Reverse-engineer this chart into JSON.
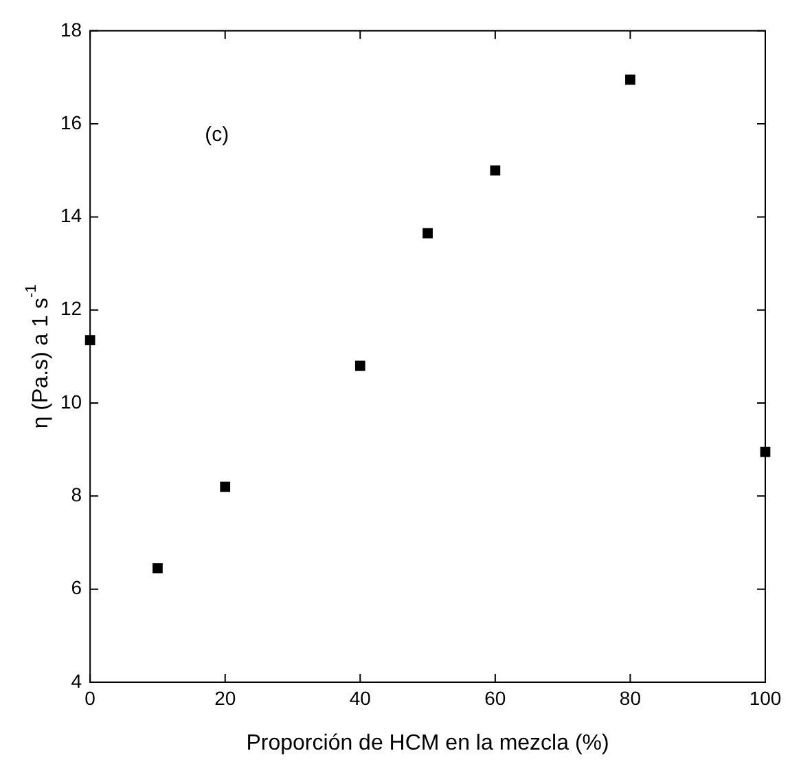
{
  "chart_data": {
    "type": "scatter",
    "xlabel": "Proporción de HCM en la mezcla (%)",
    "ylabel": "η (Pa.s) a 1 s$^{-1}$",
    "annotations": [
      "(c)"
    ],
    "x": [
      0,
      10,
      20,
      40,
      50,
      60,
      80,
      100
    ],
    "series": [
      {
        "color": "#000000",
        "values": [
          11.35,
          6.45,
          8.2,
          10.8,
          13.65,
          15.0,
          16.95,
          8.95
        ]
      }
    ],
    "xlim": [
      0,
      100
    ],
    "xticks": [
      0,
      20,
      40,
      60,
      80,
      100
    ],
    "ylim": [
      4,
      18
    ],
    "yticks": [
      4,
      6,
      8,
      10,
      12,
      14,
      16,
      18
    ],
    "marker": "square",
    "grid": false,
    "legend": false
  }
}
